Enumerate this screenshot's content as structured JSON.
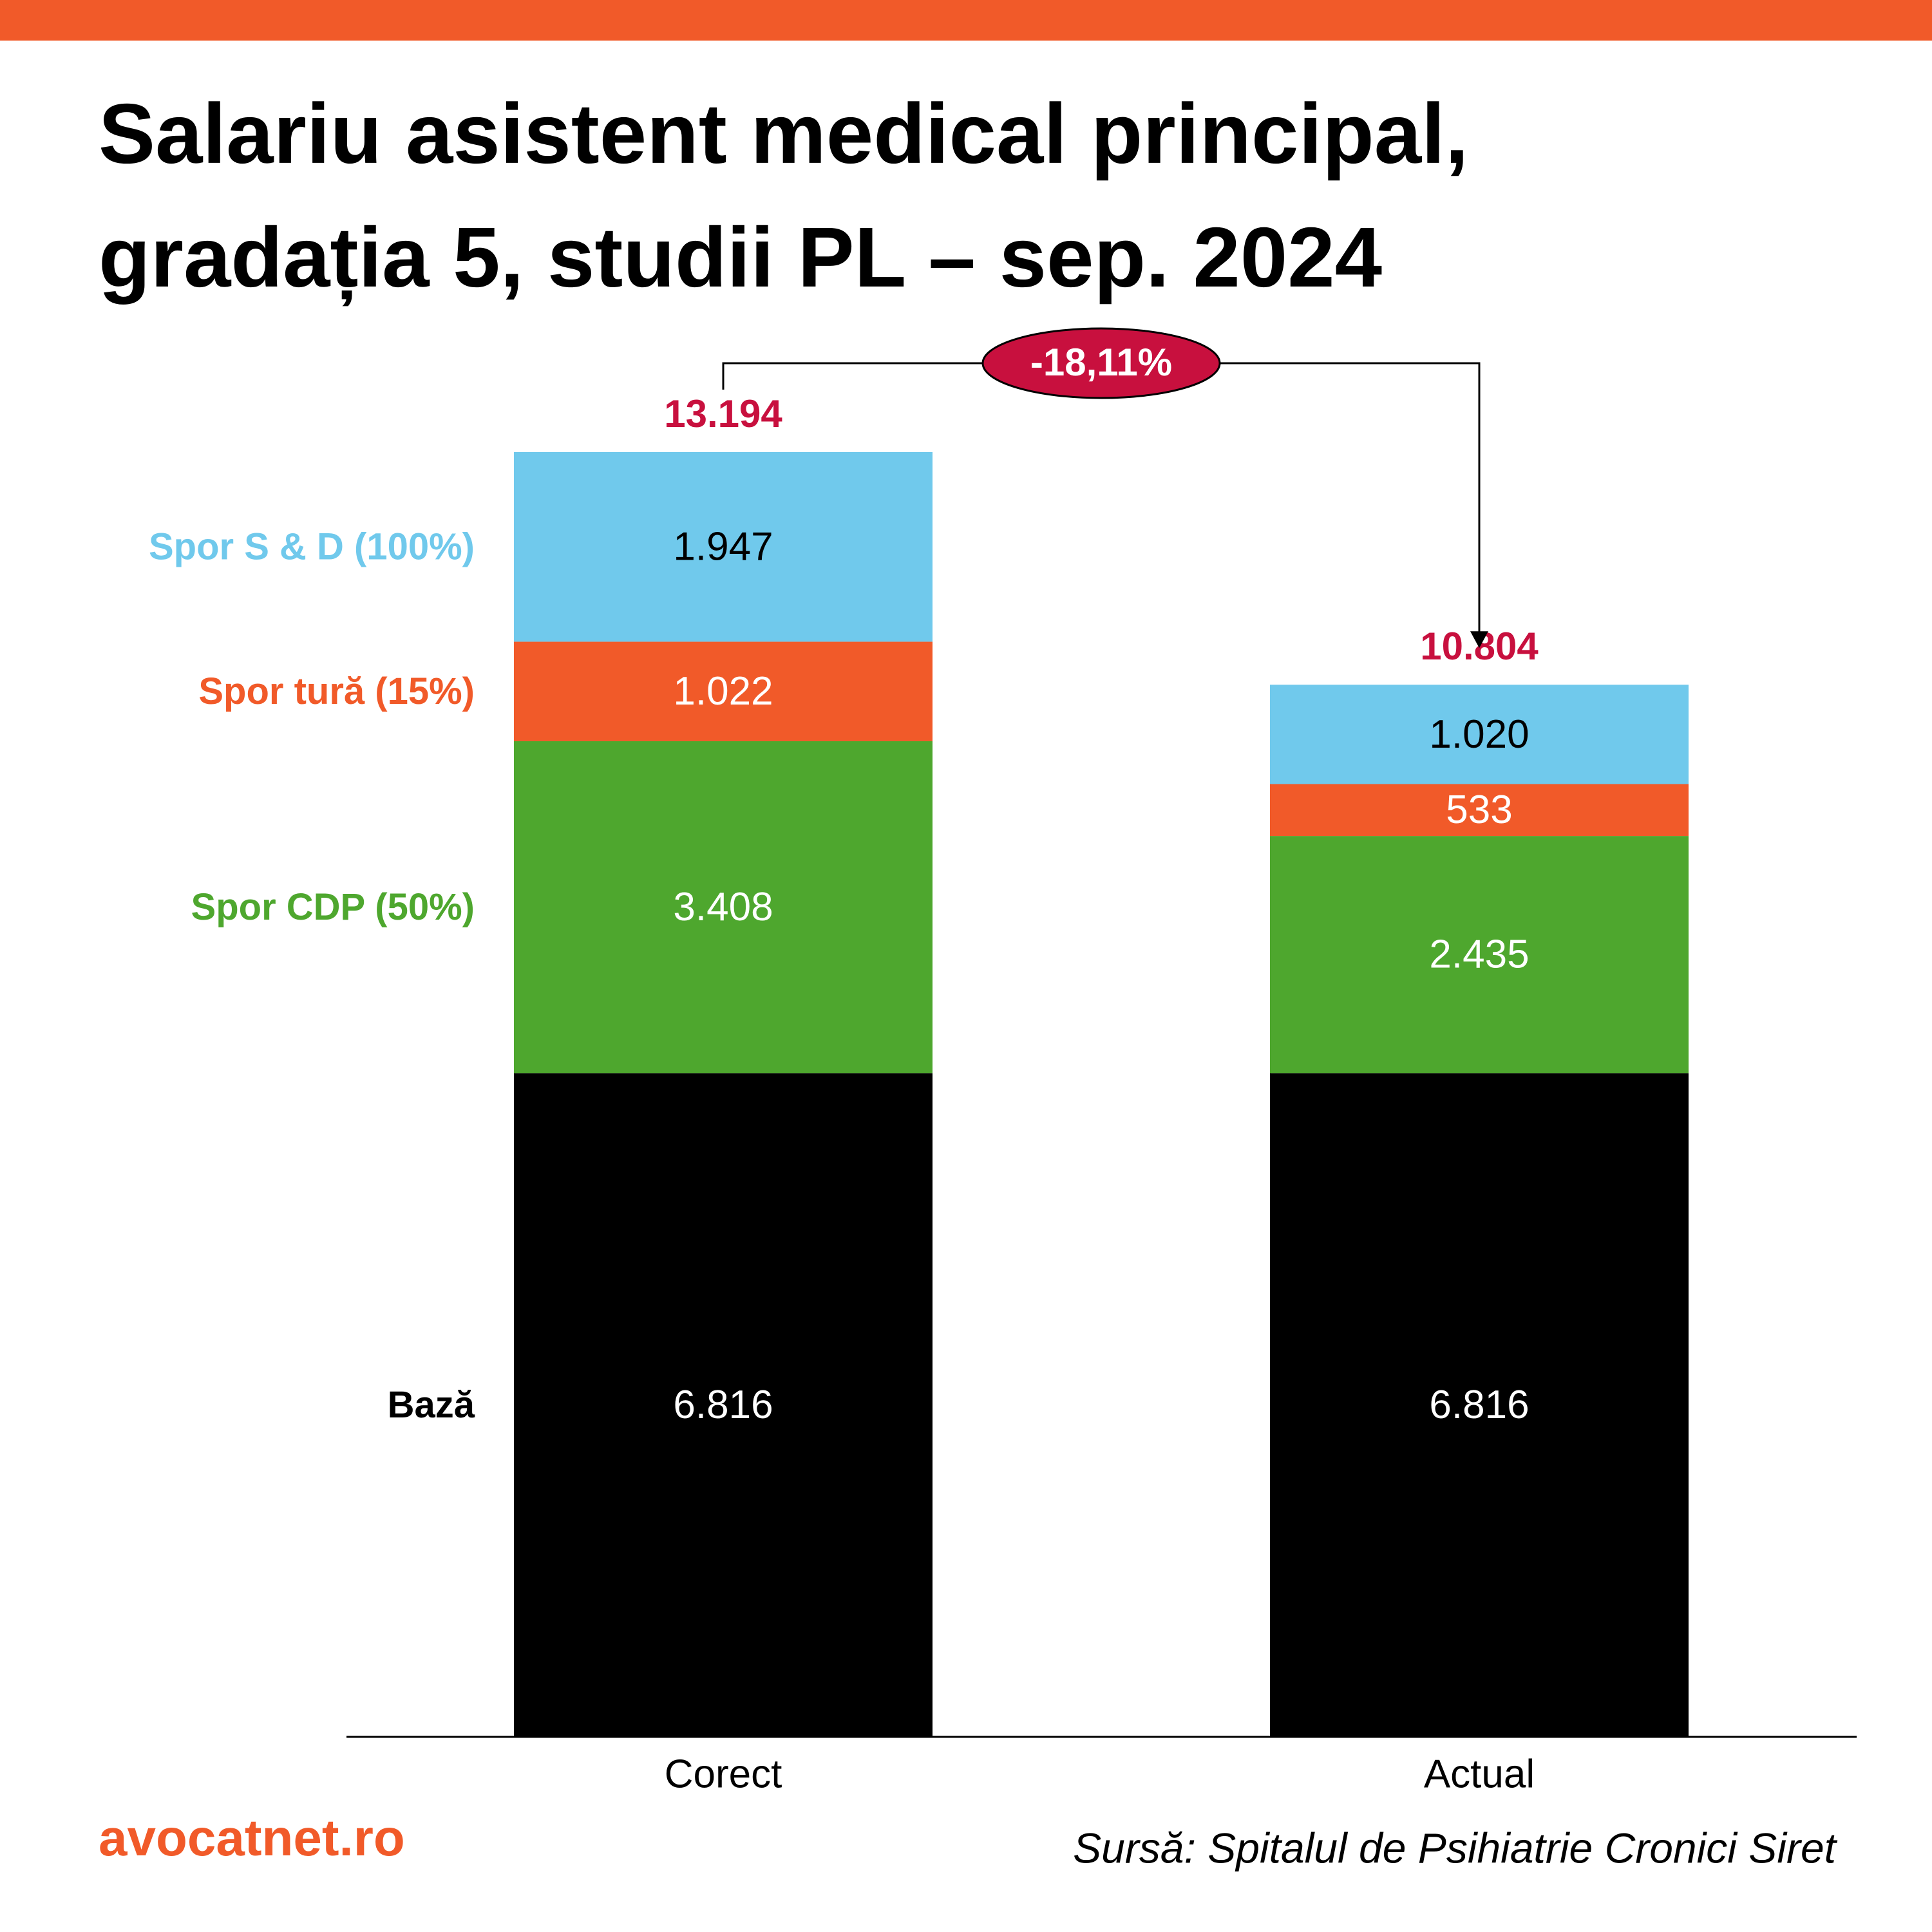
{
  "chart_data": {
    "type": "stacked_bar",
    "title": [
      "Salariu asistent medical principal,",
      "gradația 5, studii PL – sep. 2024"
    ],
    "categories": [
      "Corect",
      "Actual"
    ],
    "series": [
      {
        "name": "Bază",
        "color": "#000000",
        "label_color": "#ffffff",
        "values": [
          6816,
          6816
        ],
        "value_labels": [
          "6.816",
          "6.816"
        ]
      },
      {
        "name": "Spor CDP (50%)",
        "color": "#4ea72e",
        "label_color": "#ffffff",
        "values": [
          3408,
          2435
        ],
        "value_labels": [
          "3.408",
          "2.435"
        ]
      },
      {
        "name": "Spor tură (15%)",
        "color": "#f15a29",
        "label_color": "#ffffff",
        "values": [
          1022,
          533
        ],
        "value_labels": [
          "1.022",
          "533"
        ]
      },
      {
        "name": "Spor S & D (100%)",
        "color": "#70c9ec",
        "label_color": "#000000",
        "values": [
          1947,
          1020
        ],
        "value_labels": [
          "1.947",
          "1.020"
        ]
      }
    ],
    "totals": {
      "values": [
        13194,
        10804
      ],
      "value_labels": [
        "13.194",
        "10.804"
      ],
      "color": "#c8103e"
    },
    "change": {
      "value": -18.11,
      "label": "-18,11%",
      "color": "#c8103e"
    },
    "brand": "avocatnet.ro",
    "source": "Sursă: Spitalul de Psihiatrie Cronici Siret"
  }
}
